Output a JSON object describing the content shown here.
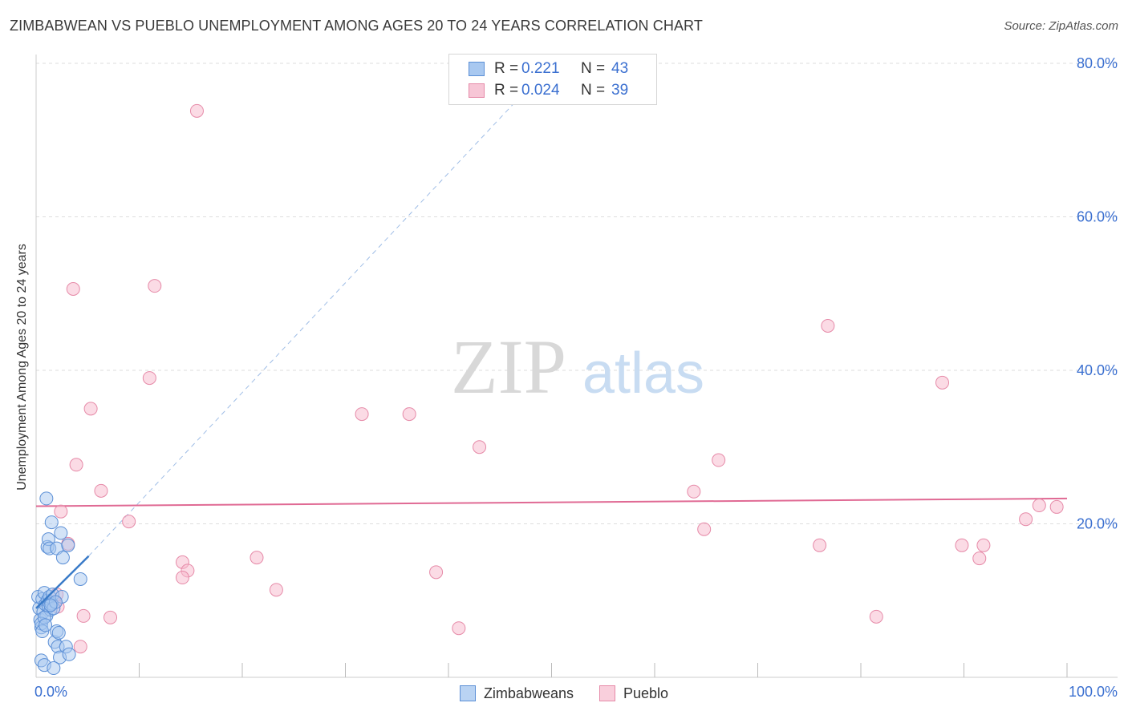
{
  "header": {
    "title": "ZIMBABWEAN VS PUEBLO UNEMPLOYMENT AMONG AGES 20 TO 24 YEARS CORRELATION CHART",
    "source": "Source: ZipAtlas.com"
  },
  "watermark": {
    "zip": "ZIP",
    "atlas": "atlas"
  },
  "stats": {
    "rows": [
      {
        "r_label": "R =",
        "r_value": "0.221",
        "n_label": "N =",
        "n_value": "43"
      },
      {
        "r_label": "R =",
        "r_value": "0.024",
        "n_label": "N =",
        "n_value": "39"
      }
    ]
  },
  "legend": {
    "items": [
      {
        "label": "Zimbabweans"
      },
      {
        "label": "Pueblo"
      }
    ]
  },
  "colors": {
    "blue_fill": "#a8c8f0",
    "blue_stroke": "#5b8fd6",
    "blue_line": "#3a7bc8",
    "pink_fill": "#f7b8cc",
    "pink_stroke": "#e68aa8",
    "pink_line": "#e06a94",
    "tick_text": "#3a6fd0",
    "grid": "#dddddd"
  },
  "chart_data": {
    "type": "scatter",
    "title": "ZIMBABWEAN VS PUEBLO UNEMPLOYMENT AMONG AGES 20 TO 24 YEARS CORRELATION CHART",
    "xlabel": "",
    "ylabel": "Unemployment Among Ages 20 to 24 years",
    "xlim": [
      0,
      100
    ],
    "ylim": [
      0,
      80
    ],
    "x_tick_labels": [
      "0.0%",
      "100.0%"
    ],
    "y_ticks": [
      20,
      40,
      60,
      80
    ],
    "y_tick_labels": [
      "20.0%",
      "40.0%",
      "60.0%",
      "80.0%"
    ],
    "grid": true,
    "series": [
      {
        "name": "Zimbabweans",
        "points": [
          {
            "x": 0.2,
            "y": 10.5
          },
          {
            "x": 0.3,
            "y": 9.0
          },
          {
            "x": 0.4,
            "y": 7.5
          },
          {
            "x": 0.5,
            "y": 6.5
          },
          {
            "x": 0.6,
            "y": 10.2
          },
          {
            "x": 0.7,
            "y": 8.5
          },
          {
            "x": 0.8,
            "y": 11.0
          },
          {
            "x": 0.9,
            "y": 9.5
          },
          {
            "x": 1.0,
            "y": 8.0
          },
          {
            "x": 1.1,
            "y": 10.0
          },
          {
            "x": 1.2,
            "y": 9.2
          },
          {
            "x": 1.3,
            "y": 10.5
          },
          {
            "x": 1.4,
            "y": 8.8
          },
          {
            "x": 1.5,
            "y": 9.6
          },
          {
            "x": 1.6,
            "y": 10.8
          },
          {
            "x": 1.7,
            "y": 9.0
          },
          {
            "x": 0.5,
            "y": 7.0
          },
          {
            "x": 0.6,
            "y": 6.0
          },
          {
            "x": 0.8,
            "y": 7.8
          },
          {
            "x": 0.9,
            "y": 6.8
          },
          {
            "x": 1.0,
            "y": 23.3
          },
          {
            "x": 1.1,
            "y": 17.0
          },
          {
            "x": 1.2,
            "y": 18.0
          },
          {
            "x": 1.3,
            "y": 16.8
          },
          {
            "x": 1.5,
            "y": 20.2
          },
          {
            "x": 2.0,
            "y": 16.8
          },
          {
            "x": 2.4,
            "y": 18.8
          },
          {
            "x": 2.6,
            "y": 15.6
          },
          {
            "x": 3.1,
            "y": 17.2
          },
          {
            "x": 4.3,
            "y": 12.8
          },
          {
            "x": 1.8,
            "y": 4.6
          },
          {
            "x": 2.1,
            "y": 4.0
          },
          {
            "x": 2.0,
            "y": 6.0
          },
          {
            "x": 2.3,
            "y": 2.6
          },
          {
            "x": 2.2,
            "y": 5.8
          },
          {
            "x": 2.9,
            "y": 4.0
          },
          {
            "x": 3.2,
            "y": 3.0
          },
          {
            "x": 0.5,
            "y": 2.2
          },
          {
            "x": 0.8,
            "y": 1.6
          },
          {
            "x": 1.7,
            "y": 1.2
          },
          {
            "x": 2.5,
            "y": 10.5
          },
          {
            "x": 1.9,
            "y": 9.8
          },
          {
            "x": 1.4,
            "y": 9.4
          }
        ],
        "trendline": {
          "from": {
            "x": 0,
            "y": 9.0
          },
          "to": {
            "x": 5.1,
            "y": 15.8
          },
          "dashed_extension_to": {
            "x": 50.0,
            "y": 80.0
          }
        }
      },
      {
        "name": "Pueblo",
        "points": [
          {
            "x": 15.6,
            "y": 73.8
          },
          {
            "x": 3.6,
            "y": 50.6
          },
          {
            "x": 11.5,
            "y": 51.0
          },
          {
            "x": 11.0,
            "y": 39.0
          },
          {
            "x": 5.3,
            "y": 35.0
          },
          {
            "x": 3.9,
            "y": 27.7
          },
          {
            "x": 6.3,
            "y": 24.3
          },
          {
            "x": 2.4,
            "y": 21.6
          },
          {
            "x": 9.0,
            "y": 20.3
          },
          {
            "x": 3.1,
            "y": 17.4
          },
          {
            "x": 2.0,
            "y": 10.8
          },
          {
            "x": 1.8,
            "y": 9.8
          },
          {
            "x": 2.1,
            "y": 9.2
          },
          {
            "x": 4.6,
            "y": 8.0
          },
          {
            "x": 7.2,
            "y": 7.8
          },
          {
            "x": 4.3,
            "y": 4.0
          },
          {
            "x": 14.2,
            "y": 15.0
          },
          {
            "x": 14.7,
            "y": 13.9
          },
          {
            "x": 14.2,
            "y": 13.0
          },
          {
            "x": 21.4,
            "y": 15.6
          },
          {
            "x": 23.3,
            "y": 11.4
          },
          {
            "x": 31.6,
            "y": 34.3
          },
          {
            "x": 36.2,
            "y": 34.3
          },
          {
            "x": 43.0,
            "y": 30.0
          },
          {
            "x": 38.8,
            "y": 13.7
          },
          {
            "x": 41.0,
            "y": 6.4
          },
          {
            "x": 63.8,
            "y": 24.2
          },
          {
            "x": 66.2,
            "y": 28.3
          },
          {
            "x": 64.8,
            "y": 19.3
          },
          {
            "x": 76.8,
            "y": 45.8
          },
          {
            "x": 76.0,
            "y": 17.2
          },
          {
            "x": 81.5,
            "y": 7.9
          },
          {
            "x": 87.9,
            "y": 38.4
          },
          {
            "x": 89.8,
            "y": 17.2
          },
          {
            "x": 91.5,
            "y": 15.5
          },
          {
            "x": 91.9,
            "y": 17.2
          },
          {
            "x": 96.0,
            "y": 20.6
          },
          {
            "x": 97.3,
            "y": 22.4
          },
          {
            "x": 99.0,
            "y": 22.2
          }
        ],
        "trendline": {
          "from": {
            "x": 0,
            "y": 22.3
          },
          "to": {
            "x": 100,
            "y": 23.3
          }
        }
      }
    ]
  }
}
